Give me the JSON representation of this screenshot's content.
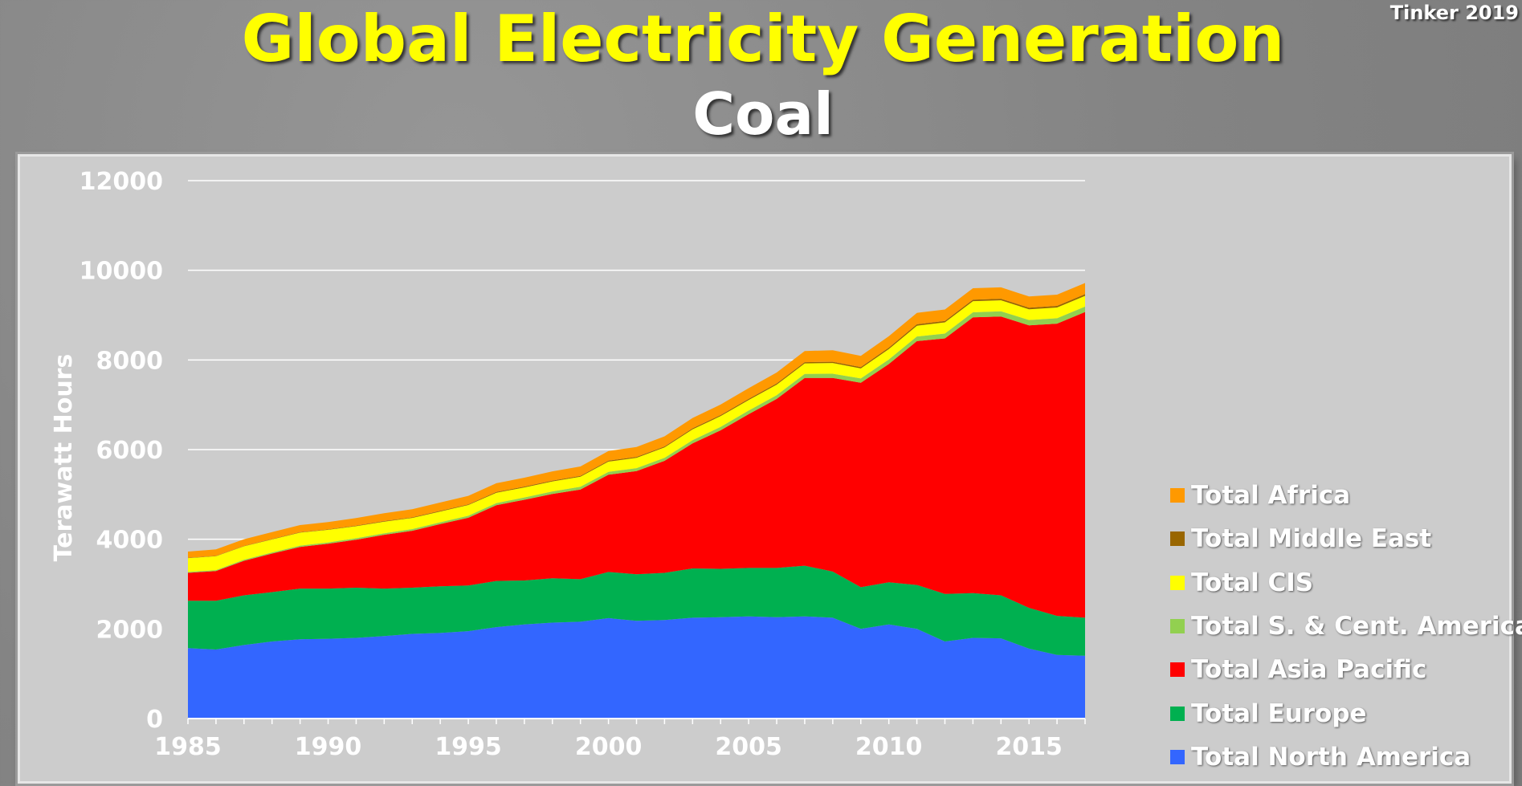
{
  "header": {
    "title": "Global Electricity Generation",
    "subtitle": "Coal",
    "credit": "Tinker 2019"
  },
  "chart_data": {
    "type": "area",
    "stacked": true,
    "title": "Global Electricity Generation",
    "subtitle": "Coal",
    "ylabel": "Terawatt Hours",
    "xlabel": "",
    "ylim": [
      0,
      12000
    ],
    "xlim": [
      1985,
      2017
    ],
    "yticks": [
      "0",
      "2000",
      "4000",
      "6000",
      "8000",
      "10000",
      "12000"
    ],
    "xticks": [
      "1985",
      "1990",
      "1995",
      "2000",
      "2005",
      "2010",
      "2015"
    ],
    "grid": true,
    "legend_position": "right",
    "x": [
      1985,
      1986,
      1987,
      1988,
      1989,
      1990,
      1991,
      1992,
      1993,
      1994,
      1995,
      1996,
      1997,
      1998,
      1999,
      2000,
      2001,
      2002,
      2003,
      2004,
      2005,
      2006,
      2007,
      2008,
      2009,
      2010,
      2011,
      2012,
      2013,
      2014,
      2015,
      2016,
      2017
    ],
    "series": [
      {
        "name": "Total North America",
        "color": "#3366ff",
        "values": [
          1570,
          1540,
          1640,
          1720,
          1770,
          1780,
          1800,
          1840,
          1890,
          1910,
          1950,
          2040,
          2100,
          2140,
          2160,
          2240,
          2180,
          2200,
          2250,
          2260,
          2280,
          2260,
          2280,
          2250,
          2000,
          2100,
          2000,
          1720,
          1800,
          1790,
          1560,
          1420,
          1400
        ]
      },
      {
        "name": "Total Europe",
        "color": "#00b050",
        "values": [
          1060,
          1090,
          1110,
          1100,
          1130,
          1120,
          1120,
          1060,
          1030,
          1040,
          1020,
          1030,
          980,
          990,
          950,
          1030,
          1040,
          1050,
          1100,
          1080,
          1080,
          1100,
          1130,
          1030,
          930,
          940,
          980,
          1060,
          1000,
          960,
          910,
          870,
          850
        ]
      },
      {
        "name": "Total Asia Pacific",
        "color": "#ff0000",
        "values": [
          620,
          660,
          770,
          860,
          930,
          1000,
          1070,
          1200,
          1270,
          1390,
          1510,
          1690,
          1800,
          1880,
          2000,
          2170,
          2300,
          2500,
          2790,
          3090,
          3430,
          3770,
          4190,
          4320,
          4560,
          4870,
          5440,
          5700,
          6150,
          6220,
          6300,
          6520,
          6820
        ]
      },
      {
        "name": "Total S. & Cent. America",
        "color": "#92d050",
        "values": [
          20,
          22,
          24,
          26,
          28,
          30,
          32,
          34,
          36,
          40,
          44,
          48,
          52,
          56,
          60,
          64,
          66,
          68,
          72,
          76,
          80,
          84,
          88,
          92,
          96,
          100,
          104,
          108,
          112,
          116,
          120,
          120,
          120
        ]
      },
      {
        "name": "Total CIS",
        "color": "#ffff00",
        "values": [
          310,
          310,
          300,
          290,
          290,
          280,
          270,
          260,
          250,
          240,
          240,
          230,
          225,
          225,
          225,
          230,
          230,
          230,
          240,
          240,
          235,
          235,
          235,
          240,
          225,
          235,
          240,
          250,
          250,
          245,
          240,
          240,
          240
        ]
      },
      {
        "name": "Total Middle East",
        "color": "#996600",
        "values": [
          5,
          6,
          7,
          8,
          9,
          10,
          11,
          12,
          13,
          14,
          15,
          16,
          17,
          18,
          19,
          20,
          21,
          22,
          23,
          24,
          25,
          26,
          27,
          28,
          29,
          30,
          31,
          32,
          33,
          34,
          35,
          36,
          37
        ]
      },
      {
        "name": "Total Africa",
        "color": "#ff9900",
        "values": [
          140,
          145,
          150,
          155,
          160,
          165,
          170,
          175,
          180,
          185,
          190,
          195,
          200,
          205,
          210,
          215,
          220,
          225,
          230,
          235,
          240,
          245,
          250,
          255,
          250,
          255,
          255,
          255,
          255,
          255,
          250,
          250,
          250
        ]
      }
    ]
  }
}
